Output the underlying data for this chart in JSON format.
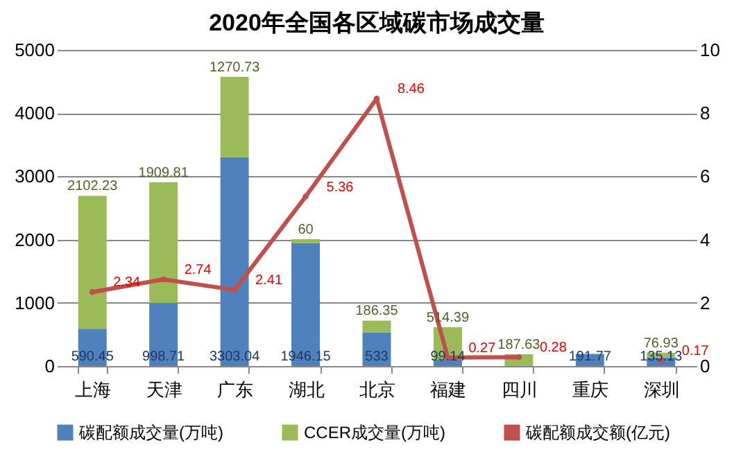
{
  "chart_data": {
    "type": "bar",
    "title": "2020年全国各区域碳市场成交量",
    "stacked": true,
    "categories": [
      "上海",
      "天津",
      "广东",
      "湖北",
      "北京",
      "福建",
      "四川",
      "重庆",
      "深圳"
    ],
    "series": [
      {
        "name": "碳配额成交量(万吨)",
        "color": "#4f81bd",
        "values": [
          590.45,
          998.71,
          3303.04,
          1946.15,
          533,
          99.14,
          null,
          191.77,
          135.13
        ]
      },
      {
        "name": "CCER成交量(万吨)",
        "color": "#9bbb59",
        "values": [
          2102.23,
          1909.81,
          1270.73,
          60,
          186.35,
          514.39,
          187.63,
          null,
          76.93
        ]
      },
      {
        "name": "碳配额成交额(亿元)",
        "type": "line",
        "axis": "y2",
        "color": "#c0504d",
        "values": [
          2.34,
          2.74,
          2.41,
          5.36,
          8.46,
          0.27,
          0.28,
          null,
          0.17
        ]
      }
    ],
    "ylim": [
      0,
      5000
    ],
    "yticks": [
      0,
      1000,
      2000,
      3000,
      4000,
      5000
    ],
    "y2lim": [
      0,
      10
    ],
    "y2ticks": [
      0,
      2,
      4,
      6,
      8,
      10
    ],
    "grid": "y",
    "legend": "bottom",
    "data_labels": true,
    "marker": "circle"
  }
}
